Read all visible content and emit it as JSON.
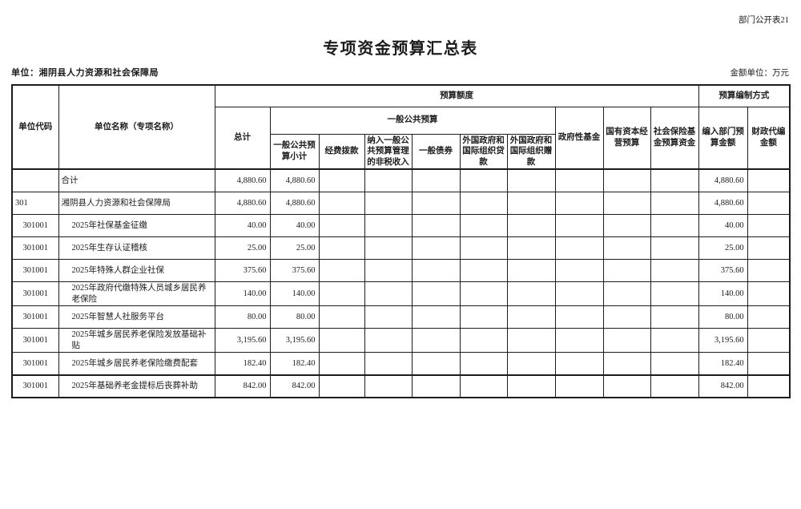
{
  "page": {
    "corner_label": "部门公开表21",
    "title": "专项资金预算汇总表",
    "unit_label": "单位：湘阴县人力资源和社会保障局",
    "amount_unit_label": "金额单位：万元"
  },
  "table": {
    "header": {
      "unit_code": "单位代码",
      "unit_name": "单位名称（专项名称）",
      "budget_quota": "预算额度",
      "budget_method": "预算编制方式",
      "total": "总计",
      "general_public_budget": "一般公共预算",
      "gpb_subtotal": "一般公共预算小计",
      "funding": "经费拨款",
      "non_tax": "纳入一般公共预算管理的非税收入",
      "bonds": "一般债券",
      "loans": "外国政府和国际组织贷款",
      "grants": "外国政府和国际组织赠款",
      "gov_fund": "政府性基金",
      "state_capital": "国有资本经营预算",
      "social_insurance": "社会保险基金预算资金",
      "dept_amount": "编入部门预算金额",
      "fiscal_amount": "财政代编金额"
    },
    "value_columns": [
      "total",
      "gpb_subtotal",
      "funding",
      "non_tax",
      "bonds",
      "loans",
      "grants",
      "gov_fund",
      "state_capital",
      "social_insurance",
      "dept_amount",
      "fiscal_amount"
    ],
    "rows": [
      {
        "code": "",
        "code_align": "center",
        "name": "合计",
        "indent": false,
        "values": {
          "total": "4,880.60",
          "gpb_subtotal": "4,880.60",
          "funding": "",
          "non_tax": "",
          "bonds": "",
          "loans": "",
          "grants": "",
          "gov_fund": "",
          "state_capital": "",
          "social_insurance": "",
          "dept_amount": "4,880.60",
          "fiscal_amount": ""
        }
      },
      {
        "code": "301",
        "code_align": "left",
        "name": "湘阴县人力资源和社会保障局",
        "indent": false,
        "values": {
          "total": "4,880.60",
          "gpb_subtotal": "4,880.60",
          "funding": "",
          "non_tax": "",
          "bonds": "",
          "loans": "",
          "grants": "",
          "gov_fund": "",
          "state_capital": "",
          "social_insurance": "",
          "dept_amount": "4,880.60",
          "fiscal_amount": ""
        }
      },
      {
        "code": "301001",
        "code_align": "center",
        "name": "2025年社保基金征缴",
        "indent": true,
        "values": {
          "total": "40.00",
          "gpb_subtotal": "40.00",
          "funding": "",
          "non_tax": "",
          "bonds": "",
          "loans": "",
          "grants": "",
          "gov_fund": "",
          "state_capital": "",
          "social_insurance": "",
          "dept_amount": "40.00",
          "fiscal_amount": ""
        }
      },
      {
        "code": "301001",
        "code_align": "center",
        "name": "2025年生存认证稽核",
        "indent": true,
        "values": {
          "total": "25.00",
          "gpb_subtotal": "25.00",
          "funding": "",
          "non_tax": "",
          "bonds": "",
          "loans": "",
          "grants": "",
          "gov_fund": "",
          "state_capital": "",
          "social_insurance": "",
          "dept_amount": "25.00",
          "fiscal_amount": ""
        }
      },
      {
        "code": "301001",
        "code_align": "center",
        "name": "2025年特殊人群企业社保",
        "indent": true,
        "values": {
          "total": "375.60",
          "gpb_subtotal": "375.60",
          "funding": "",
          "non_tax": "",
          "bonds": "",
          "loans": "",
          "grants": "",
          "gov_fund": "",
          "state_capital": "",
          "social_insurance": "",
          "dept_amount": "375.60",
          "fiscal_amount": ""
        }
      },
      {
        "code": "301001",
        "code_align": "center",
        "name": "2025年政府代缴特殊人员城乡居民养老保险",
        "indent": true,
        "values": {
          "total": "140.00",
          "gpb_subtotal": "140.00",
          "funding": "",
          "non_tax": "",
          "bonds": "",
          "loans": "",
          "grants": "",
          "gov_fund": "",
          "state_capital": "",
          "social_insurance": "",
          "dept_amount": "140.00",
          "fiscal_amount": ""
        }
      },
      {
        "code": "301001",
        "code_align": "center",
        "name": "2025年智慧人社服务平台",
        "indent": true,
        "values": {
          "total": "80.00",
          "gpb_subtotal": "80.00",
          "funding": "",
          "non_tax": "",
          "bonds": "",
          "loans": "",
          "grants": "",
          "gov_fund": "",
          "state_capital": "",
          "social_insurance": "",
          "dept_amount": "80.00",
          "fiscal_amount": ""
        }
      },
      {
        "code": "301001",
        "code_align": "center",
        "name": "2025年城乡居民养老保险发放基础补贴",
        "indent": true,
        "values": {
          "total": "3,195.60",
          "gpb_subtotal": "3,195.60",
          "funding": "",
          "non_tax": "",
          "bonds": "",
          "loans": "",
          "grants": "",
          "gov_fund": "",
          "state_capital": "",
          "social_insurance": "",
          "dept_amount": "3,195.60",
          "fiscal_amount": ""
        }
      },
      {
        "code": "301001",
        "code_align": "center",
        "name": "2025年城乡居民养老保险缴费配套",
        "indent": true,
        "values": {
          "total": "182.40",
          "gpb_subtotal": "182.40",
          "funding": "",
          "non_tax": "",
          "bonds": "",
          "loans": "",
          "grants": "",
          "gov_fund": "",
          "state_capital": "",
          "social_insurance": "",
          "dept_amount": "182.40",
          "fiscal_amount": ""
        }
      },
      {
        "code": "301001",
        "code_align": "center",
        "name": "2025年基础养老金提标后丧葬补助",
        "indent": true,
        "values": {
          "total": "842.00",
          "gpb_subtotal": "842.00",
          "funding": "",
          "non_tax": "",
          "bonds": "",
          "loans": "",
          "grants": "",
          "gov_fund": "",
          "state_capital": "",
          "social_insurance": "",
          "dept_amount": "842.00",
          "fiscal_amount": ""
        }
      }
    ]
  }
}
